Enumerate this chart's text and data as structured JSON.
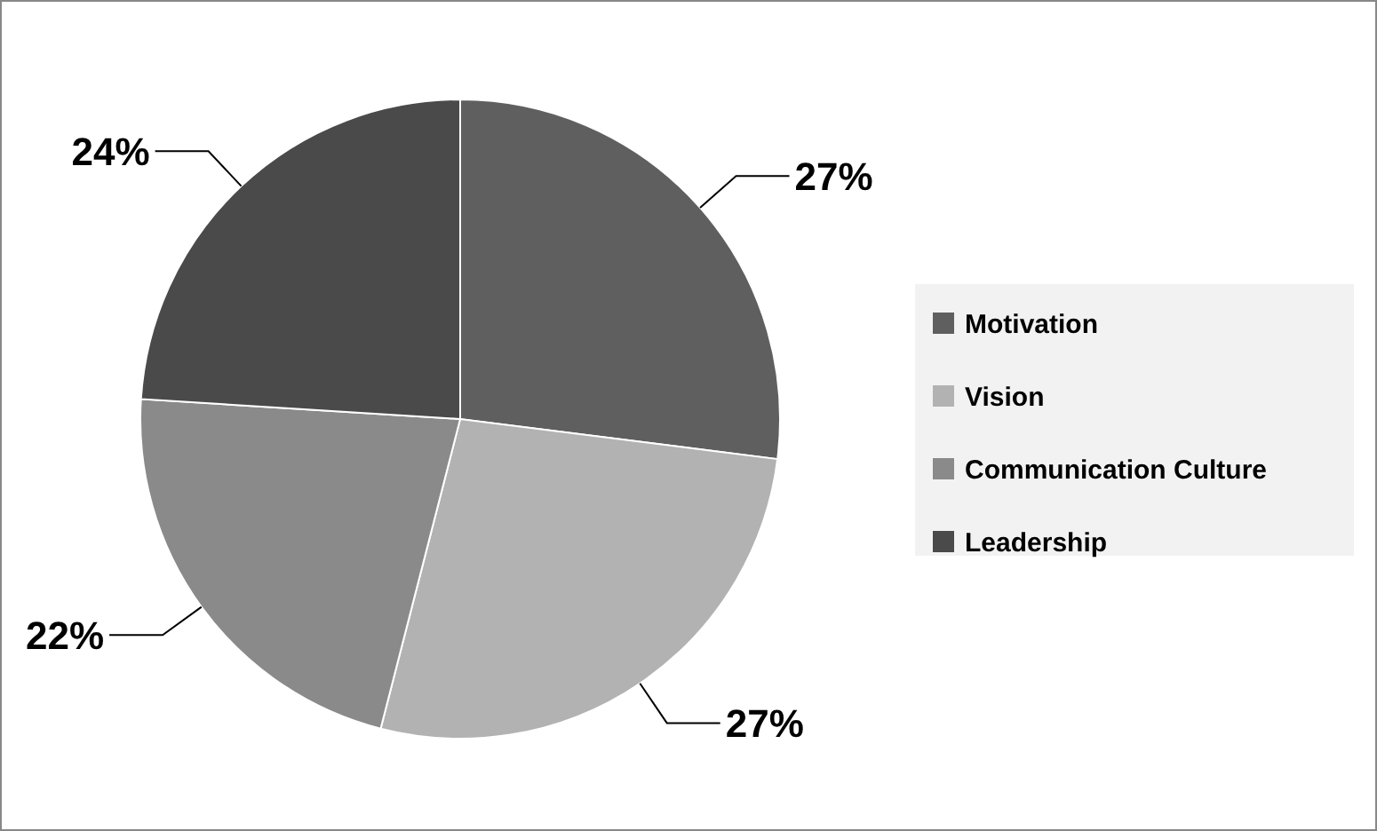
{
  "chart_data": {
    "type": "pie",
    "categories": [
      "Motivation",
      "Vision",
      "Communication Culture",
      "Leadership"
    ],
    "values": [
      27,
      27,
      22,
      24
    ],
    "colors": [
      "#5f5f5f",
      "#b2b2b2",
      "#8a8a8a",
      "#4a4a4a"
    ],
    "value_labels": [
      "27%",
      "27%",
      "22%",
      "24%"
    ],
    "legend": "right"
  }
}
